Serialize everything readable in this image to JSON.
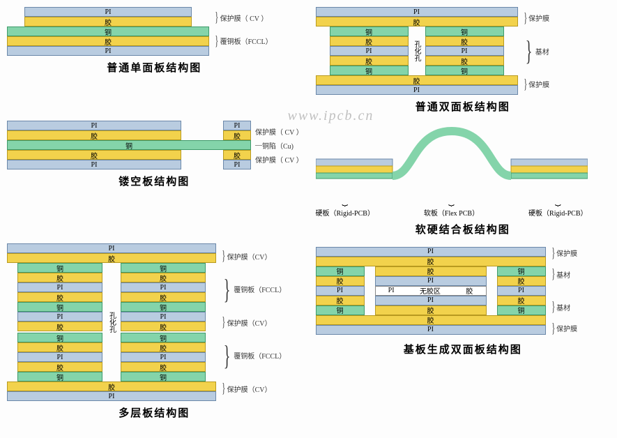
{
  "materials": {
    "PI": {
      "label": "PI",
      "bg": "#b9cce0",
      "border": "#6b88a9"
    },
    "JIAO": {
      "label": "胶",
      "bg": "#f2d24c",
      "border": "#b89a20"
    },
    "TONG": {
      "label": "铜",
      "bg": "#84d4aa",
      "border": "#3e9a6a"
    },
    "WHITE": {
      "label": "",
      "bg": "#ffffff",
      "border": "#888888"
    }
  },
  "annotations": {
    "cv": "保护膜（CV）",
    "cv2": "保护膜（ CV ）",
    "fccl": "覆铜板（FCCL）",
    "baohu": "保护膜",
    "jicai": "基材",
    "cu": "铜陷（Cu)",
    "kong": "孔化孔",
    "wujiao": "无胶区",
    "rigid": "硬板（Rigid-PCB）",
    "flex": "软板（Flex PCB）"
  },
  "titles": {
    "d1": "普通单面板结构图",
    "d2": "普通双面板结构图",
    "d3": "镂空板结构图",
    "d4": "软硬结合板结构图",
    "d5": "多层板结构图",
    "d6": "基板生成双面板结构图"
  },
  "watermark": "www.ipcb.cn",
  "diagrams": {
    "single": {
      "width_top": 240,
      "width_mid": 290,
      "layers": [
        "PI",
        "JIAO",
        "TONG",
        "JIAO",
        "PI"
      ]
    },
    "double": {
      "width_outer": 290,
      "width_inner": 250,
      "hole_w": 24,
      "top": [
        "PI",
        "JIAO"
      ],
      "mid": [
        "TONG",
        "JIAO",
        "PI",
        "JIAO",
        "TONG"
      ],
      "bot": [
        "JIAO",
        "PI"
      ]
    },
    "hollow": {
      "width_main": 250,
      "width_stub": 40,
      "gap": 60,
      "split": [
        "PI",
        "JIAO"
      ],
      "full": [
        "TONG"
      ],
      "split2": [
        "JIAO",
        "PI"
      ]
    },
    "multi": {
      "width_outer": 300,
      "width_inner": 270,
      "hole_w": 26,
      "outer_top": [
        "PI",
        "JIAO"
      ],
      "core1": [
        "TONG",
        "JIAO",
        "PI",
        "JIAO",
        "TONG"
      ],
      "cv_mid": [
        "PI",
        "JIAO"
      ],
      "outer_bot": [
        "JIAO",
        "PI"
      ]
    },
    "rigidflex": {
      "rigid_w": 110,
      "flex_w": 170,
      "colors": {
        "rigid_top": "#b9cce0",
        "rigid_mid": "#f2d24c",
        "flex": "#84d4aa"
      }
    },
    "substrate": {
      "width_outer": 330,
      "width_side": 70,
      "width_center": 160,
      "gap": 8,
      "top": [
        "PI",
        "JIAO"
      ],
      "side_stack": [
        "TONG",
        "JIAO",
        "PI",
        "JIAO",
        "TONG"
      ],
      "center_stack_top": [
        "JIAO",
        "PI"
      ],
      "bot": [
        "JIAO",
        "PI"
      ]
    }
  }
}
